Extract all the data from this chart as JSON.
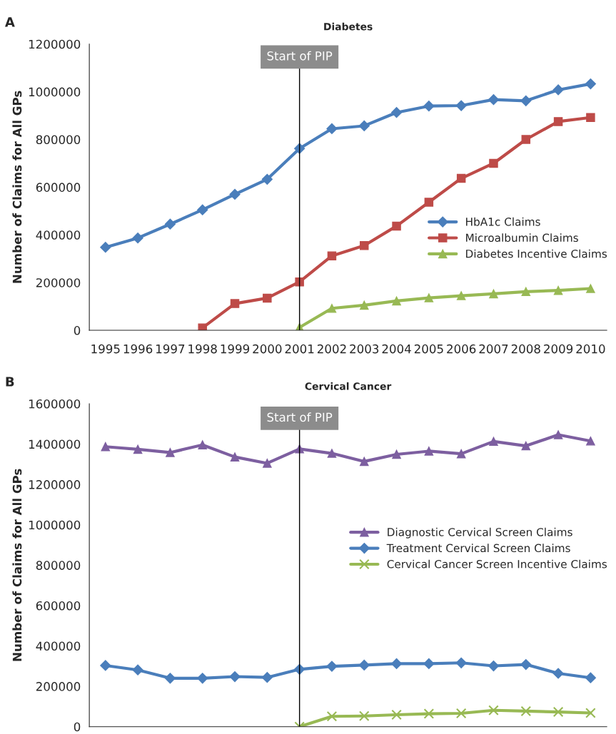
{
  "chart_data": [
    {
      "type": "line",
      "title": "Diabetes",
      "ylabel": "Number of Claims for All GPs",
      "annotations": [
        "A"
      ],
      "categories": [
        "1995",
        "1996",
        "1997",
        "1998",
        "1999",
        "2000",
        "2001",
        "2002",
        "2003",
        "2004",
        "2005",
        "2006",
        "2007",
        "2008",
        "2009",
        "2010"
      ],
      "series": [
        {
          "name": "HbA1c Claims",
          "color": "#4a7ebb",
          "marker": "diamond",
          "values": [
            348000,
            387000,
            445000,
            505000,
            570000,
            633000,
            762000,
            845000,
            857000,
            913000,
            940000,
            942000,
            967000,
            962000,
            1008000,
            1033000
          ]
        },
        {
          "name": "Microalbumin Claims",
          "color": "#be4b48",
          "marker": "square",
          "values": [
            null,
            null,
            null,
            10000,
            112000,
            135000,
            203000,
            312000,
            355000,
            437000,
            537000,
            637000,
            700000,
            800000,
            875000,
            892000
          ]
        },
        {
          "name": "Diabetes Incentive Claims",
          "color": "#98b954",
          "marker": "triangle",
          "values": [
            null,
            null,
            null,
            null,
            null,
            null,
            12000,
            92000,
            105000,
            123000,
            136000,
            145000,
            153000,
            162000,
            167000,
            175000
          ]
        }
      ],
      "ylim": [
        0,
        1200000
      ],
      "yticks": [
        0,
        200000,
        400000,
        600000,
        800000,
        1000000,
        1200000
      ],
      "ref_lines": [
        {
          "axis": "x",
          "value": "2001",
          "label": "Start of PIP",
          "color": "#000000"
        }
      ],
      "legend": "right",
      "grid": false
    },
    {
      "type": "line",
      "title": "Cervical Cancer",
      "ylabel": "Number of Claims for All GPs",
      "categories": [
        null,
        null,
        null,
        null,
        null,
        null,
        null,
        null,
        null,
        null,
        null,
        null,
        null,
        null,
        null,
        null
      ],
      "series": [
        {
          "name": "Diagnostic Cervical Screen Claims",
          "color": "#7d5fa0",
          "marker": "triangle",
          "values": [
            1387000,
            1374000,
            1358000,
            1396000,
            1336000,
            1305000,
            1376000,
            1354000,
            1314000,
            1349000,
            1365000,
            1352000,
            1413000,
            1391000,
            1446000,
            1415000
          ]
        },
        {
          "name": "Treatment Cervical Screen Claims",
          "color": "#4a7ebb",
          "marker": "diamond",
          "values": [
            303000,
            281000,
            240000,
            240000,
            248000,
            244000,
            284000,
            299000,
            305000,
            312000,
            312000,
            316000,
            301000,
            308000,
            264000,
            242000
          ]
        },
        {
          "name": "Cervical Cancer Screen Incentive Claims",
          "color": "#98b954",
          "marker": "cross",
          "values": [
            null,
            null,
            null,
            null,
            null,
            null,
            0,
            51000,
            53000,
            59000,
            64000,
            66000,
            81000,
            77000,
            73000,
            68000
          ]
        }
      ],
      "ylim": [
        0,
        1600000
      ],
      "yticks": [
        0,
        200000,
        400000,
        600000,
        800000,
        1000000,
        1200000,
        1400000,
        1600000
      ],
      "annotations": [
        "B",
        "Start of PIP"
      ],
      "legend": "right",
      "grid": false,
      "tick_labels": "y"
    }
  ]
}
